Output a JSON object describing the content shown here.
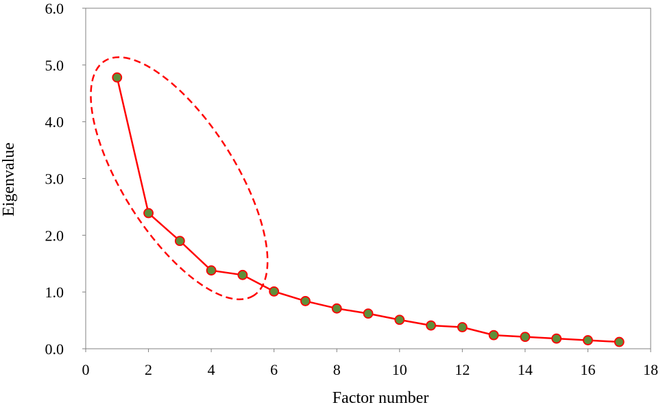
{
  "chart_data": {
    "type": "line",
    "title": "",
    "xlabel": "Factor number",
    "ylabel": "Eigenvalue",
    "xlim": [
      0,
      18
    ],
    "ylim": [
      0,
      6
    ],
    "x_ticks": [
      0,
      2,
      4,
      6,
      8,
      10,
      12,
      14,
      16,
      18
    ],
    "y_ticks": [
      "0.0",
      "1.0",
      "2.0",
      "3.0",
      "4.0",
      "5.0",
      "6.0"
    ],
    "grid": false,
    "series": [
      {
        "name": "Eigenvalue",
        "line_color": "#ff0000",
        "marker_fill": "#5f8f3a",
        "marker_edge": "#ff0000",
        "x": [
          1,
          2,
          3,
          4,
          5,
          6,
          7,
          8,
          9,
          10,
          11,
          12,
          13,
          14,
          15,
          16,
          17
        ],
        "y": [
          4.78,
          2.39,
          1.9,
          1.38,
          1.3,
          1.01,
          0.84,
          0.71,
          0.62,
          0.51,
          0.41,
          0.38,
          0.24,
          0.21,
          0.18,
          0.15,
          0.12
        ]
      }
    ],
    "annotations": [
      {
        "type": "dashed-ellipse",
        "color": "#ff0000",
        "encloses_factors": [
          1,
          2,
          3,
          4,
          5
        ]
      }
    ]
  }
}
